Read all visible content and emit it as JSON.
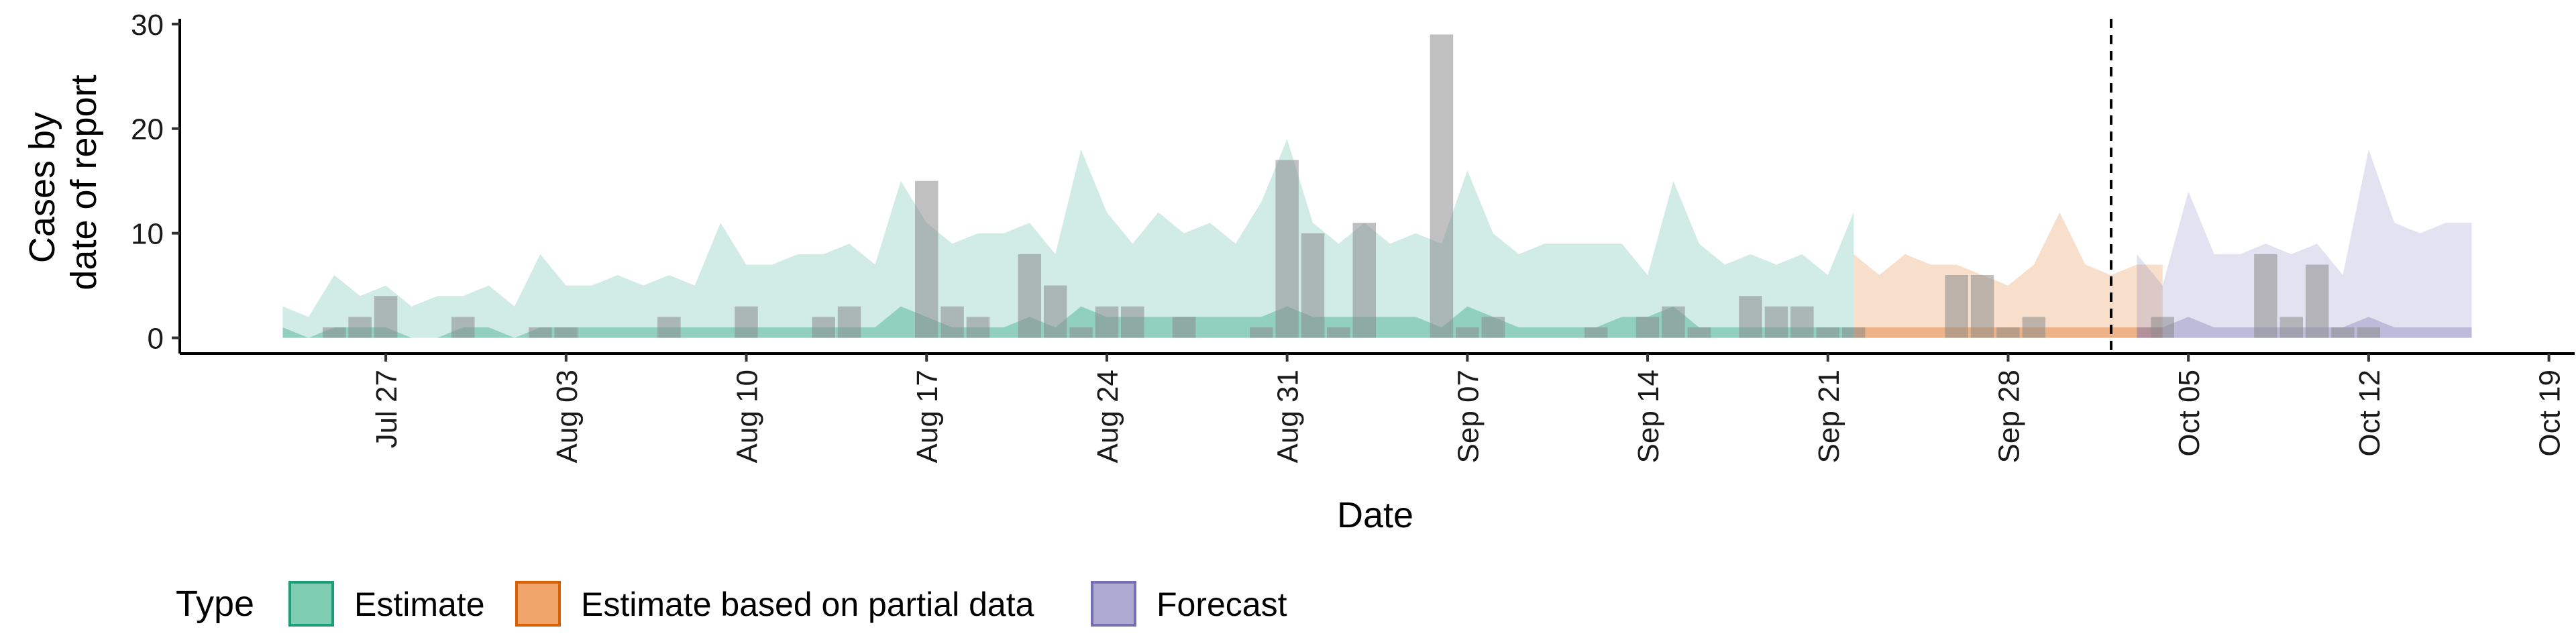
{
  "chart_data": {
    "type": "area",
    "title": "",
    "xlabel": "Date",
    "ylabel_lines": [
      "Cases by",
      "date of report"
    ],
    "ylim": [
      -1.5,
      30.5
    ],
    "yticks": [
      0,
      10,
      20,
      30
    ],
    "x_range": [
      "2020-07-19",
      "2020-10-20"
    ],
    "x_ticks": [
      {
        "date": "2020-07-27",
        "label": "Jul 27"
      },
      {
        "date": "2020-08-03",
        "label": "Aug 03"
      },
      {
        "date": "2020-08-10",
        "label": "Aug 10"
      },
      {
        "date": "2020-08-17",
        "label": "Aug 17"
      },
      {
        "date": "2020-08-24",
        "label": "Aug 24"
      },
      {
        "date": "2020-08-31",
        "label": "Aug 31"
      },
      {
        "date": "2020-09-07",
        "label": "Sep 07"
      },
      {
        "date": "2020-09-14",
        "label": "Sep 14"
      },
      {
        "date": "2020-09-21",
        "label": "Sep 21"
      },
      {
        "date": "2020-09-28",
        "label": "Sep 28"
      },
      {
        "date": "2020-10-05",
        "label": "Oct 05"
      },
      {
        "date": "2020-10-12",
        "label": "Oct 12"
      },
      {
        "date": "2020-10-19",
        "label": "Oct 19"
      }
    ],
    "forecast_date": "2020-10-02",
    "legend": {
      "title": "Type",
      "placement": "bottom",
      "entries": [
        {
          "name": "Estimate",
          "fill": "#7fcdb2",
          "stroke": "#1b9e77"
        },
        {
          "name": "Estimate based on partial data",
          "fill": "#f0a56b",
          "stroke": "#d95f02"
        },
        {
          "name": "Forecast",
          "fill": "#aeaad2",
          "stroke": "#7570b3"
        }
      ]
    },
    "series": [
      {
        "name": "Estimate",
        "color": "#1b9e77",
        "start": "2020-07-23",
        "upper90": [
          3,
          2,
          6,
          4,
          5,
          3,
          4,
          4,
          5,
          3,
          8,
          5,
          5,
          6,
          5,
          6,
          5,
          11,
          7,
          7,
          8,
          8,
          9,
          7,
          15,
          11,
          9,
          10,
          10,
          11,
          8,
          18,
          12,
          9,
          12,
          10,
          11,
          9,
          13,
          19,
          11,
          9,
          11,
          9,
          10,
          9,
          16,
          10,
          8,
          9,
          9,
          9,
          9,
          6,
          15,
          9,
          7,
          8,
          7,
          8,
          6,
          12
        ],
        "upper50": [
          1,
          0,
          1,
          1,
          1,
          0,
          0,
          1,
          1,
          0,
          1,
          1,
          1,
          1,
          1,
          1,
          1,
          1,
          1,
          1,
          1,
          1,
          1,
          1,
          3,
          2,
          1,
          1,
          1,
          2,
          1,
          3,
          2,
          2,
          2,
          2,
          2,
          2,
          2,
          3,
          2,
          2,
          2,
          2,
          2,
          1,
          3,
          2,
          1,
          1,
          1,
          1,
          2,
          2,
          3,
          1,
          1,
          1,
          1,
          1,
          1,
          1
        ],
        "lower": [
          0,
          0,
          0,
          0,
          0,
          0,
          0,
          0,
          0,
          0,
          0,
          0,
          0,
          0,
          0,
          0,
          0,
          0,
          0,
          0,
          0,
          0,
          0,
          0,
          0,
          0,
          0,
          0,
          0,
          0,
          0,
          0,
          0,
          0,
          0,
          0,
          0,
          0,
          0,
          0,
          0,
          0,
          0,
          0,
          0,
          0,
          0,
          0,
          0,
          0,
          0,
          0,
          0,
          0,
          0,
          0,
          0,
          0,
          0,
          0,
          0,
          0
        ]
      },
      {
        "name": "Estimate based on partial data",
        "color": "#d95f02",
        "start": "2020-09-22",
        "upper90": [
          8,
          6,
          8,
          7,
          7,
          6,
          5,
          7,
          12,
          7,
          6,
          7,
          7
        ],
        "upper50": [
          1,
          1,
          1,
          1,
          1,
          1,
          1,
          1,
          1,
          1,
          1,
          1,
          1
        ],
        "lower": [
          0,
          0,
          0,
          0,
          0,
          0,
          0,
          0,
          0,
          0,
          0,
          0,
          0
        ]
      },
      {
        "name": "Forecast",
        "color": "#7570b3",
        "start": "2020-10-03",
        "upper90": [
          8,
          5,
          14,
          8,
          8,
          9,
          8,
          9,
          6,
          18,
          11,
          10,
          11,
          11
        ],
        "upper50": [
          1,
          1,
          2,
          1,
          1,
          1,
          1,
          1,
          1,
          2,
          1,
          1,
          1,
          1
        ],
        "lower": [
          0,
          0,
          0,
          0,
          0,
          0,
          0,
          0,
          0,
          0,
          0,
          0,
          0,
          0
        ]
      }
    ],
    "reported_cases": {
      "name": "Cases by date of report",
      "color": "#8c8c8c",
      "start": "2020-07-25",
      "values": [
        1,
        2,
        4,
        0,
        0,
        2,
        0,
        0,
        1,
        1,
        0,
        0,
        0,
        2,
        0,
        0,
        3,
        0,
        0,
        2,
        3,
        0,
        0,
        15,
        3,
        2,
        0,
        8,
        5,
        1,
        3,
        3,
        0,
        2,
        0,
        0,
        1,
        17,
        10,
        1,
        11,
        0,
        0,
        29,
        1,
        2,
        0,
        0,
        0,
        1,
        0,
        2,
        3,
        1,
        0,
        4,
        3,
        3,
        1,
        1,
        0,
        0,
        0,
        6,
        6,
        1,
        2,
        0,
        0,
        0,
        0,
        2,
        0,
        0,
        0,
        8,
        2,
        7,
        1,
        1
      ]
    }
  }
}
